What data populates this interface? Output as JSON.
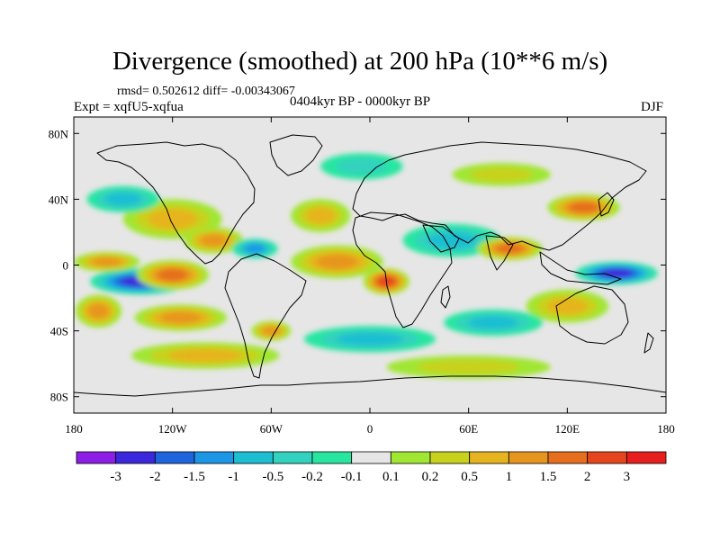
{
  "header": {
    "title": "Divergence (smoothed) at 200 hPa (10**6 m/s)",
    "stats": "rmsd= 0.502612 diff= -0.00343067",
    "experiment": "Expt = xqfU5-xqfua",
    "period": "0404kyr BP - 0000kyr BP",
    "season": "DJF"
  },
  "chart_data": {
    "type": "heatmap",
    "title": "Divergence (smoothed) at 200 hPa (10**6 m/s)",
    "subtitle": "0404kyr BP - 0000kyr BP",
    "season": "DJF",
    "units": "10**6 m/s",
    "projection": "cylindrical-equidistant",
    "xlim": [
      -180,
      180
    ],
    "ylim": [
      -90,
      90
    ],
    "x_ticks": [
      {
        "value": -180,
        "label": "180"
      },
      {
        "value": -120,
        "label": "120W"
      },
      {
        "value": -60,
        "label": "60W"
      },
      {
        "value": 0,
        "label": "0"
      },
      {
        "value": 60,
        "label": "60E"
      },
      {
        "value": 120,
        "label": "120E"
      },
      {
        "value": 180,
        "label": "180"
      }
    ],
    "y_ticks": [
      {
        "value": 80,
        "label": "80N"
      },
      {
        "value": 40,
        "label": "40N"
      },
      {
        "value": 0,
        "label": "0"
      },
      {
        "value": -40,
        "label": "40S"
      },
      {
        "value": -80,
        "label": "80S"
      }
    ],
    "colorbar": {
      "colors": [
        "#8c1ee6",
        "#3c28dc",
        "#1e64dc",
        "#1e96e6",
        "#1ebed2",
        "#32d2be",
        "#28e6a0",
        "#e6e6e6",
        "#a0e632",
        "#c8d21e",
        "#e6b41e",
        "#e6961e",
        "#e66e1e",
        "#e6461e",
        "#e61e1e"
      ],
      "labels": [
        "-3",
        "-2",
        "-1.5",
        "-1",
        "-0.5",
        "-0.2",
        "-0.1",
        "0.1",
        "0.2",
        "0.5",
        "1",
        "1.5",
        "2",
        "3"
      ]
    },
    "features": [
      {
        "lon": -140,
        "lat": -10,
        "rx": 30,
        "ry": 8,
        "value": -2.0
      },
      {
        "lon": -120,
        "lat": -6,
        "rx": 22,
        "ry": 9,
        "value": 1.6
      },
      {
        "lon": -160,
        "lat": 2,
        "rx": 20,
        "ry": 6,
        "value": 1.2
      },
      {
        "lon": -165,
        "lat": -28,
        "rx": 14,
        "ry": 10,
        "value": 1.0
      },
      {
        "lon": -115,
        "lat": -32,
        "rx": 28,
        "ry": 8,
        "value": 1.0
      },
      {
        "lon": -120,
        "lat": 28,
        "rx": 30,
        "ry": 12,
        "value": 0.6
      },
      {
        "lon": -150,
        "lat": 40,
        "rx": 22,
        "ry": 8,
        "value": -0.5
      },
      {
        "lon": -95,
        "lat": 15,
        "rx": 18,
        "ry": 8,
        "value": 1.0
      },
      {
        "lon": -70,
        "lat": 10,
        "rx": 14,
        "ry": 6,
        "value": -1.0
      },
      {
        "lon": -60,
        "lat": -40,
        "rx": 12,
        "ry": 6,
        "value": 1.2
      },
      {
        "lon": -30,
        "lat": 30,
        "rx": 18,
        "ry": 10,
        "value": 0.5
      },
      {
        "lon": -20,
        "lat": 2,
        "rx": 28,
        "ry": 10,
        "value": 1.0
      },
      {
        "lon": 10,
        "lat": -10,
        "rx": 14,
        "ry": 8,
        "value": 2.0
      },
      {
        "lon": 50,
        "lat": 15,
        "rx": 30,
        "ry": 10,
        "value": -0.5
      },
      {
        "lon": 85,
        "lat": 10,
        "rx": 20,
        "ry": 7,
        "value": 1.5
      },
      {
        "lon": 130,
        "lat": 35,
        "rx": 22,
        "ry": 8,
        "value": 1.5
      },
      {
        "lon": 150,
        "lat": -5,
        "rx": 25,
        "ry": 7,
        "value": -2.0
      },
      {
        "lon": 120,
        "lat": -25,
        "rx": 25,
        "ry": 10,
        "value": 0.5
      },
      {
        "lon": 75,
        "lat": -35,
        "rx": 30,
        "ry": 8,
        "value": -0.5
      },
      {
        "lon": 0,
        "lat": -45,
        "rx": 40,
        "ry": 8,
        "value": -0.5
      },
      {
        "lon": -100,
        "lat": -55,
        "rx": 45,
        "ry": 8,
        "value": 0.5
      },
      {
        "lon": 60,
        "lat": -62,
        "rx": 50,
        "ry": 7,
        "value": 0.2
      },
      {
        "lon": -5,
        "lat": 60,
        "rx": 25,
        "ry": 8,
        "value": -0.2
      },
      {
        "lon": 80,
        "lat": 55,
        "rx": 30,
        "ry": 7,
        "value": 0.2
      }
    ]
  }
}
